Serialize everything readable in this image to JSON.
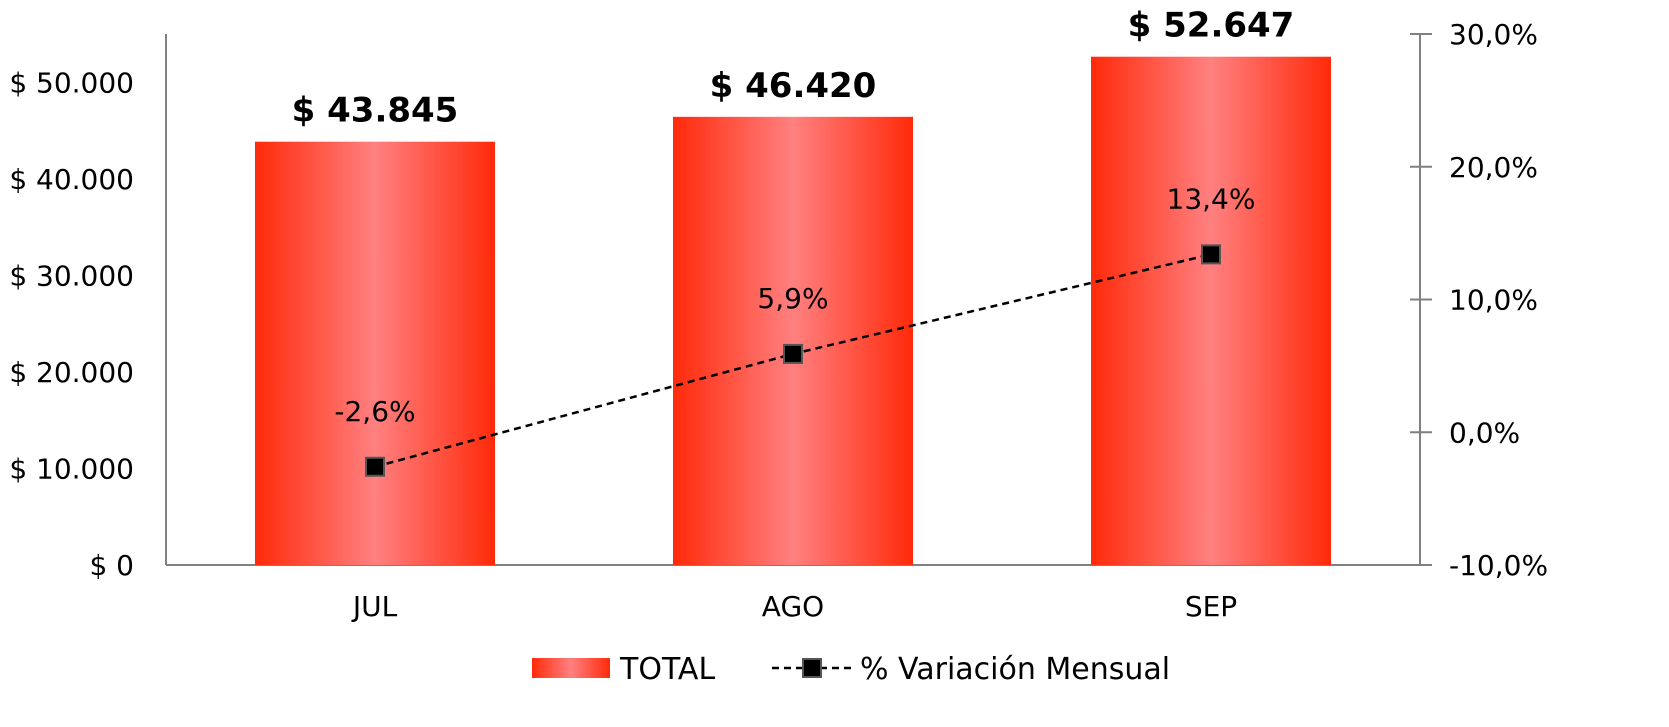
{
  "chart_data": {
    "type": "bar",
    "categories": [
      "JUL",
      "AGO",
      "SEP"
    ],
    "series": [
      {
        "name": "TOTAL",
        "type": "bar",
        "axis": "left",
        "values": [
          43845,
          46420,
          52647
        ],
        "labels": [
          "$ 43.845",
          "$ 46.420",
          "$ 52.647"
        ],
        "color": "#ff2a0a"
      },
      {
        "name": "% Variación Mensual",
        "type": "line",
        "axis": "right",
        "values": [
          -2.6,
          5.9,
          13.4
        ],
        "labels": [
          "-2,6%",
          "5,9%",
          "13,4%"
        ],
        "color": "#000000",
        "line_style": "dashed",
        "marker": "square"
      }
    ],
    "y_left": {
      "ylim": [
        0,
        55000
      ],
      "ticks": [
        0,
        10000,
        20000,
        30000,
        40000,
        50000
      ],
      "tick_labels": [
        "$ 0",
        "$ 10.000",
        "$ 20.000",
        "$ 30.000",
        "$ 40.000",
        "$ 50.000"
      ]
    },
    "y_right": {
      "ylim": [
        -10,
        30
      ],
      "ticks": [
        -10,
        0,
        10,
        20,
        30
      ],
      "tick_labels": [
        "-10,0%",
        "0,0%",
        "10,0%",
        "20,0%",
        "30,0%"
      ]
    },
    "title": "",
    "xlabel": "",
    "ylabel": "",
    "grid": false,
    "legend_position": "bottom"
  }
}
